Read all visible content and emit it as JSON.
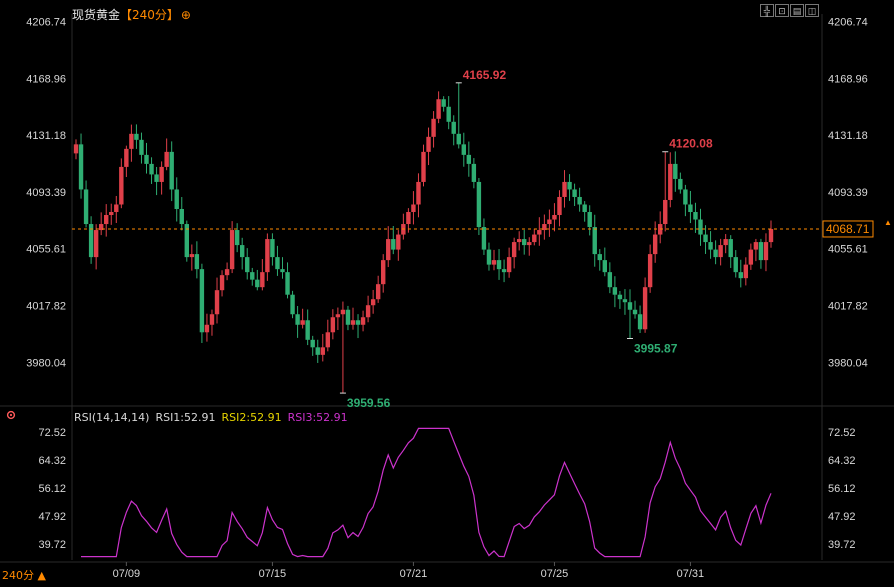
{
  "header": {
    "instrument": "现货黄金",
    "period": "【240分】",
    "period_icon": "target-icon",
    "toolbar_icons": [
      "crosshair-icon",
      "fit-icon",
      "indicator-icon",
      "scale-icon"
    ]
  },
  "colors": {
    "up": "#e0404a",
    "down": "#2fae73",
    "rsi": "#cc33cc",
    "rsi2": "#e6d400",
    "rsi3": "#cc33cc",
    "price_line": "#ff8a00"
  },
  "chart_data": [
    {
      "type": "candlestick",
      "title": "现货黄金",
      "y_ticks": [
        "4206.74",
        "4168.96",
        "4131.18",
        "4093.39",
        "4055.61",
        "4017.82",
        "3980.04"
      ],
      "ylim": [
        3952.3,
        4211.7
      ],
      "x_ticks": [
        "07/09",
        "07/15",
        "07/21",
        "07/25",
        "07/31"
      ],
      "last_price": "4068.71",
      "annotations": [
        {
          "text": "4165.92",
          "value": 4165.92,
          "kind": "high",
          "bar": 76
        },
        {
          "text": "4120.08",
          "value": 4120.08,
          "kind": "high",
          "bar": 117
        },
        {
          "text": "3995.87",
          "value": 3995.87,
          "kind": "low",
          "bar": 110
        },
        {
          "text": "3959.56",
          "value": 3959.56,
          "kind": "low",
          "bar": 53
        }
      ],
      "closes": [
        4125,
        4095,
        4072,
        4050,
        4068,
        4072,
        4078,
        4080,
        4085,
        4110,
        4122,
        4132,
        4128,
        4118,
        4112,
        4105,
        4100,
        4110,
        4120,
        4095,
        4082,
        4072,
        4050,
        4052,
        4042,
        4000,
        4005,
        4012,
        4028,
        4038,
        4042,
        4068,
        4058,
        4050,
        4040,
        4035,
        4030,
        4040,
        4062,
        4050,
        4042,
        4040,
        4025,
        4012,
        4005,
        4008,
        3995,
        3990,
        3985,
        3990,
        4000,
        4010,
        4012,
        4015,
        4005,
        4008,
        4005,
        4010,
        4018,
        4022,
        4032,
        4048,
        4062,
        4055,
        4065,
        4072,
        4080,
        4085,
        4100,
        4120,
        4130,
        4142,
        4155,
        4150,
        4140,
        4132,
        4125,
        4118,
        4112,
        4100,
        4070,
        4055,
        4045,
        4048,
        4042,
        4040,
        4050,
        4060,
        4062,
        4058,
        4060,
        4065,
        4068,
        4072,
        4075,
        4078,
        4090,
        4100,
        4095,
        4090,
        4085,
        4080,
        4070,
        4052,
        4048,
        4040,
        4030,
        4025,
        4022,
        4020,
        4015,
        4012,
        4002,
        4030,
        4052,
        4065,
        4072,
        4088,
        4112,
        4102,
        4095,
        4085,
        4080,
        4075,
        4065,
        4060,
        4055,
        4050,
        4058,
        4062,
        4050,
        4040,
        4036,
        4045,
        4055,
        4060,
        4048,
        4060,
        4068.71
      ]
    },
    {
      "type": "line",
      "title": "RSI(14,14,14)",
      "series_labels": [
        "RSI1:52.91",
        "RSI2:52.91",
        "RSI3:52.91"
      ],
      "y_ticks": [
        "72.52",
        "64.32",
        "56.12",
        "47.92",
        "39.72"
      ],
      "ylim": [
        35.0,
        74.5
      ]
    }
  ],
  "footer": {
    "period_label": "240分",
    "arrow_icon": "up-arrow-icon"
  }
}
